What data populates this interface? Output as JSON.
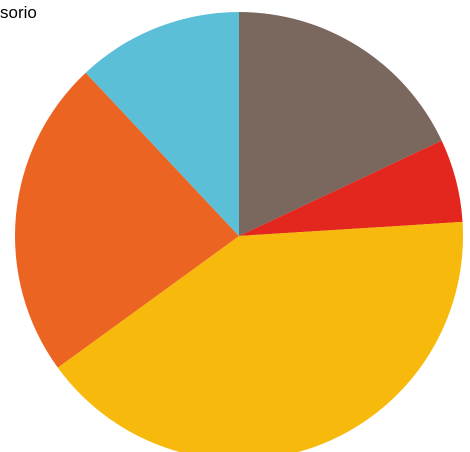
{
  "chart_data": {
    "type": "pie",
    "title": "sorio",
    "slices": [
      {
        "value": 18,
        "color": "#7A675D"
      },
      {
        "value": 6,
        "color": "#E3261E"
      },
      {
        "value": 41,
        "color": "#F8B90D"
      },
      {
        "value": 23,
        "color": "#EC6422"
      },
      {
        "value": 12,
        "color": "#5BBFD8"
      }
    ],
    "start_angle_deg": 0,
    "direction": "clockwise",
    "legend": "none",
    "data_labels": "none"
  }
}
